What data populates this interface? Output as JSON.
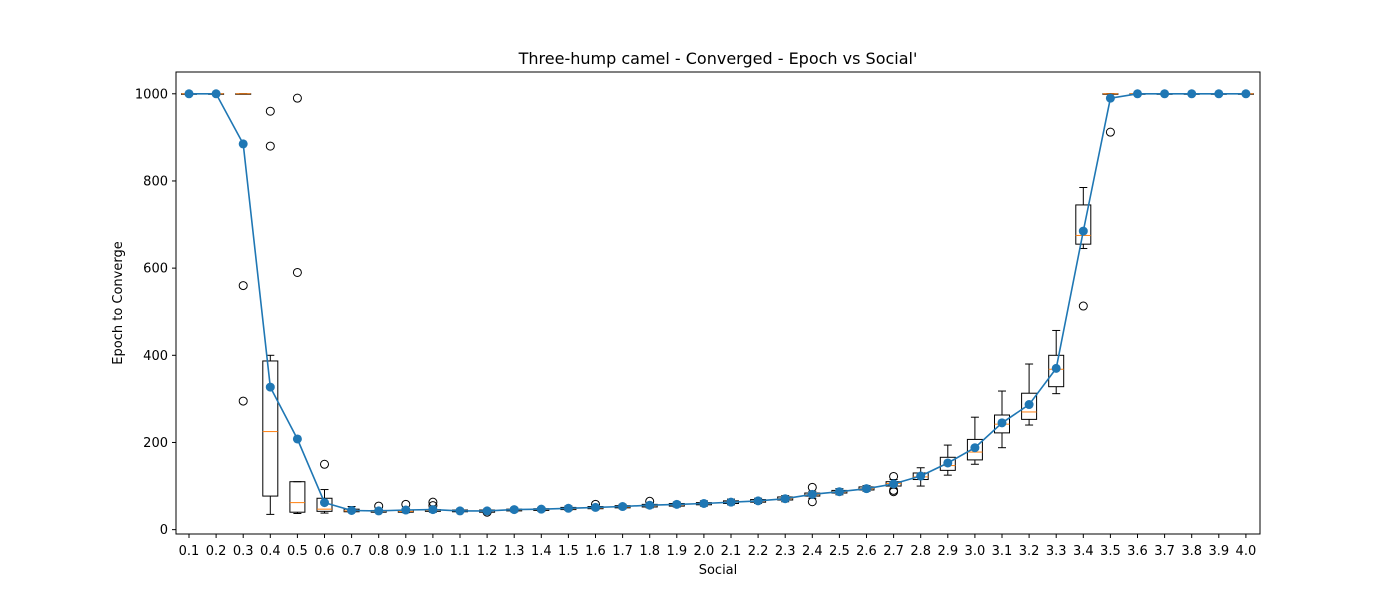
{
  "chart_data": {
    "type": "box",
    "title": "Three-hump camel - Converged - Epoch vs Social'",
    "xlabel": "Social",
    "ylabel": "Epoch to Converge",
    "ylim": [
      -10,
      1050
    ],
    "yticks": [
      0,
      200,
      400,
      600,
      800,
      1000
    ],
    "grid": false,
    "colors": {
      "mean": "#1f77b4",
      "median": "#ff7f0e",
      "box": "#000000"
    },
    "categories": [
      "0.1",
      "0.2",
      "0.3",
      "0.4",
      "0.5",
      "0.6",
      "0.7",
      "0.8",
      "0.9",
      "1.0",
      "1.1",
      "1.2",
      "1.3",
      "1.4",
      "1.5",
      "1.6",
      "1.7",
      "1.8",
      "1.9",
      "2.0",
      "2.1",
      "2.2",
      "2.3",
      "2.4",
      "2.5",
      "2.6",
      "2.7",
      "2.8",
      "2.9",
      "3.0",
      "3.1",
      "3.2",
      "3.3",
      "3.4",
      "3.5",
      "3.6",
      "3.7",
      "3.8",
      "3.9",
      "4.0"
    ],
    "boxes": [
      {
        "x": "0.1",
        "whislo": 1000,
        "q1": 1000,
        "med": 1000,
        "q3": 1000,
        "whishi": 1000,
        "fliers": []
      },
      {
        "x": "0.2",
        "whislo": 1000,
        "q1": 1000,
        "med": 1000,
        "q3": 1000,
        "whishi": 1000,
        "fliers": []
      },
      {
        "x": "0.3",
        "whislo": 1000,
        "q1": 1000,
        "med": 1000,
        "q3": 1000,
        "whishi": 1000,
        "fliers": [
          560,
          295
        ]
      },
      {
        "x": "0.4",
        "whislo": 35,
        "q1": 77,
        "med": 225,
        "q3": 387,
        "whishi": 400,
        "fliers": [
          960,
          880
        ]
      },
      {
        "x": "0.5",
        "whislo": 37,
        "q1": 40,
        "med": 62,
        "q3": 110,
        "whishi": 110,
        "fliers": [
          990,
          590
        ]
      },
      {
        "x": "0.6",
        "whislo": 38,
        "q1": 42,
        "med": 47,
        "q3": 72,
        "whishi": 92,
        "fliers": [
          150
        ]
      },
      {
        "x": "0.7",
        "whislo": 40,
        "q1": 41,
        "med": 43,
        "q3": 47,
        "whishi": 53,
        "fliers": []
      },
      {
        "x": "0.8",
        "whislo": 39,
        "q1": 40,
        "med": 42,
        "q3": 44,
        "whishi": 47,
        "fliers": [
          54
        ]
      },
      {
        "x": "0.9",
        "whislo": 39,
        "q1": 40,
        "med": 42,
        "q3": 45,
        "whishi": 49,
        "fliers": [
          58
        ]
      },
      {
        "x": "1.0",
        "whislo": 40,
        "q1": 42,
        "med": 44,
        "q3": 46,
        "whishi": 50,
        "fliers": [
          55,
          63
        ]
      },
      {
        "x": "1.1",
        "whislo": 40,
        "q1": 41,
        "med": 43,
        "q3": 45,
        "whishi": 47,
        "fliers": []
      },
      {
        "x": "1.2",
        "whislo": 38,
        "q1": 40,
        "med": 43,
        "q3": 45,
        "whishi": 47,
        "fliers": [
          40
        ]
      },
      {
        "x": "1.3",
        "whislo": 41,
        "q1": 43,
        "med": 45,
        "q3": 47,
        "whishi": 50,
        "fliers": []
      },
      {
        "x": "1.4",
        "whislo": 42,
        "q1": 44,
        "med": 46,
        "q3": 48,
        "whishi": 51,
        "fliers": []
      },
      {
        "x": "1.5",
        "whislo": 44,
        "q1": 46,
        "med": 48,
        "q3": 51,
        "whishi": 54,
        "fliers": []
      },
      {
        "x": "1.6",
        "whislo": 46,
        "q1": 48,
        "med": 50,
        "q3": 53,
        "whishi": 56,
        "fliers": [
          58
        ]
      },
      {
        "x": "1.7",
        "whislo": 48,
        "q1": 50,
        "med": 52,
        "q3": 55,
        "whishi": 58,
        "fliers": []
      },
      {
        "x": "1.8",
        "whislo": 50,
        "q1": 52,
        "med": 55,
        "q3": 58,
        "whishi": 61,
        "fliers": [
          65
        ]
      },
      {
        "x": "1.9",
        "whislo": 52,
        "q1": 54,
        "med": 57,
        "q3": 60,
        "whishi": 63,
        "fliers": []
      },
      {
        "x": "2.0",
        "whislo": 54,
        "q1": 57,
        "med": 60,
        "q3": 62,
        "whishi": 66,
        "fliers": []
      },
      {
        "x": "2.1",
        "whislo": 57,
        "q1": 60,
        "med": 63,
        "q3": 66,
        "whishi": 70,
        "fliers": []
      },
      {
        "x": "2.2",
        "whislo": 60,
        "q1": 63,
        "med": 66,
        "q3": 69,
        "whishi": 72,
        "fliers": []
      },
      {
        "x": "2.3",
        "whislo": 64,
        "q1": 68,
        "med": 71,
        "q3": 75,
        "whishi": 78,
        "fliers": []
      },
      {
        "x": "2.4",
        "whislo": 72,
        "q1": 77,
        "med": 80,
        "q3": 84,
        "whishi": 88,
        "fliers": [
          97,
          64
        ]
      },
      {
        "x": "2.5",
        "whislo": 80,
        "q1": 84,
        "med": 87,
        "q3": 90,
        "whishi": 94,
        "fliers": []
      },
      {
        "x": "2.6",
        "whislo": 88,
        "q1": 91,
        "med": 94,
        "q3": 98,
        "whishi": 101,
        "fliers": []
      },
      {
        "x": "2.7",
        "whislo": 95,
        "q1": 100,
        "med": 106,
        "q3": 110,
        "whishi": 115,
        "fliers": [
          122,
          90,
          87
        ]
      },
      {
        "x": "2.8",
        "whislo": 100,
        "q1": 115,
        "med": 121,
        "q3": 130,
        "whishi": 142,
        "fliers": []
      },
      {
        "x": "2.9",
        "whislo": 125,
        "q1": 136,
        "med": 147,
        "q3": 166,
        "whishi": 194,
        "fliers": []
      },
      {
        "x": "3.0",
        "whislo": 150,
        "q1": 160,
        "med": 178,
        "q3": 207,
        "whishi": 258,
        "fliers": []
      },
      {
        "x": "3.1",
        "whislo": 188,
        "q1": 222,
        "med": 242,
        "q3": 263,
        "whishi": 318,
        "fliers": []
      },
      {
        "x": "3.2",
        "whislo": 240,
        "q1": 253,
        "med": 270,
        "q3": 313,
        "whishi": 380,
        "fliers": []
      },
      {
        "x": "3.3",
        "whislo": 312,
        "q1": 328,
        "med": 368,
        "q3": 400,
        "whishi": 457,
        "fliers": []
      },
      {
        "x": "3.4",
        "whislo": 645,
        "q1": 655,
        "med": 675,
        "q3": 745,
        "whishi": 785,
        "fliers": [
          513
        ]
      },
      {
        "x": "3.5",
        "whislo": 1000,
        "q1": 1000,
        "med": 1000,
        "q3": 1000,
        "whishi": 1000,
        "fliers": [
          912
        ]
      },
      {
        "x": "3.6",
        "whislo": 1000,
        "q1": 1000,
        "med": 1000,
        "q3": 1000,
        "whishi": 1000,
        "fliers": []
      },
      {
        "x": "3.7",
        "whislo": 1000,
        "q1": 1000,
        "med": 1000,
        "q3": 1000,
        "whishi": 1000,
        "fliers": []
      },
      {
        "x": "3.8",
        "whislo": 1000,
        "q1": 1000,
        "med": 1000,
        "q3": 1000,
        "whishi": 1000,
        "fliers": []
      },
      {
        "x": "3.9",
        "whislo": 1000,
        "q1": 1000,
        "med": 1000,
        "q3": 1000,
        "whishi": 1000,
        "fliers": []
      },
      {
        "x": "4.0",
        "whislo": 1000,
        "q1": 1000,
        "med": 1000,
        "q3": 1000,
        "whishi": 1000,
        "fliers": []
      }
    ],
    "series": [
      {
        "values": [
          1000,
          1000,
          885,
          327,
          208,
          62,
          44,
          43,
          45,
          46,
          43,
          43,
          46,
          47,
          49,
          51,
          53,
          56,
          58,
          60,
          63,
          66,
          71,
          81,
          87,
          94,
          105,
          123,
          153,
          188,
          245,
          287,
          370,
          685,
          990,
          1000,
          1000,
          1000,
          1000,
          1000
        ]
      }
    ]
  }
}
